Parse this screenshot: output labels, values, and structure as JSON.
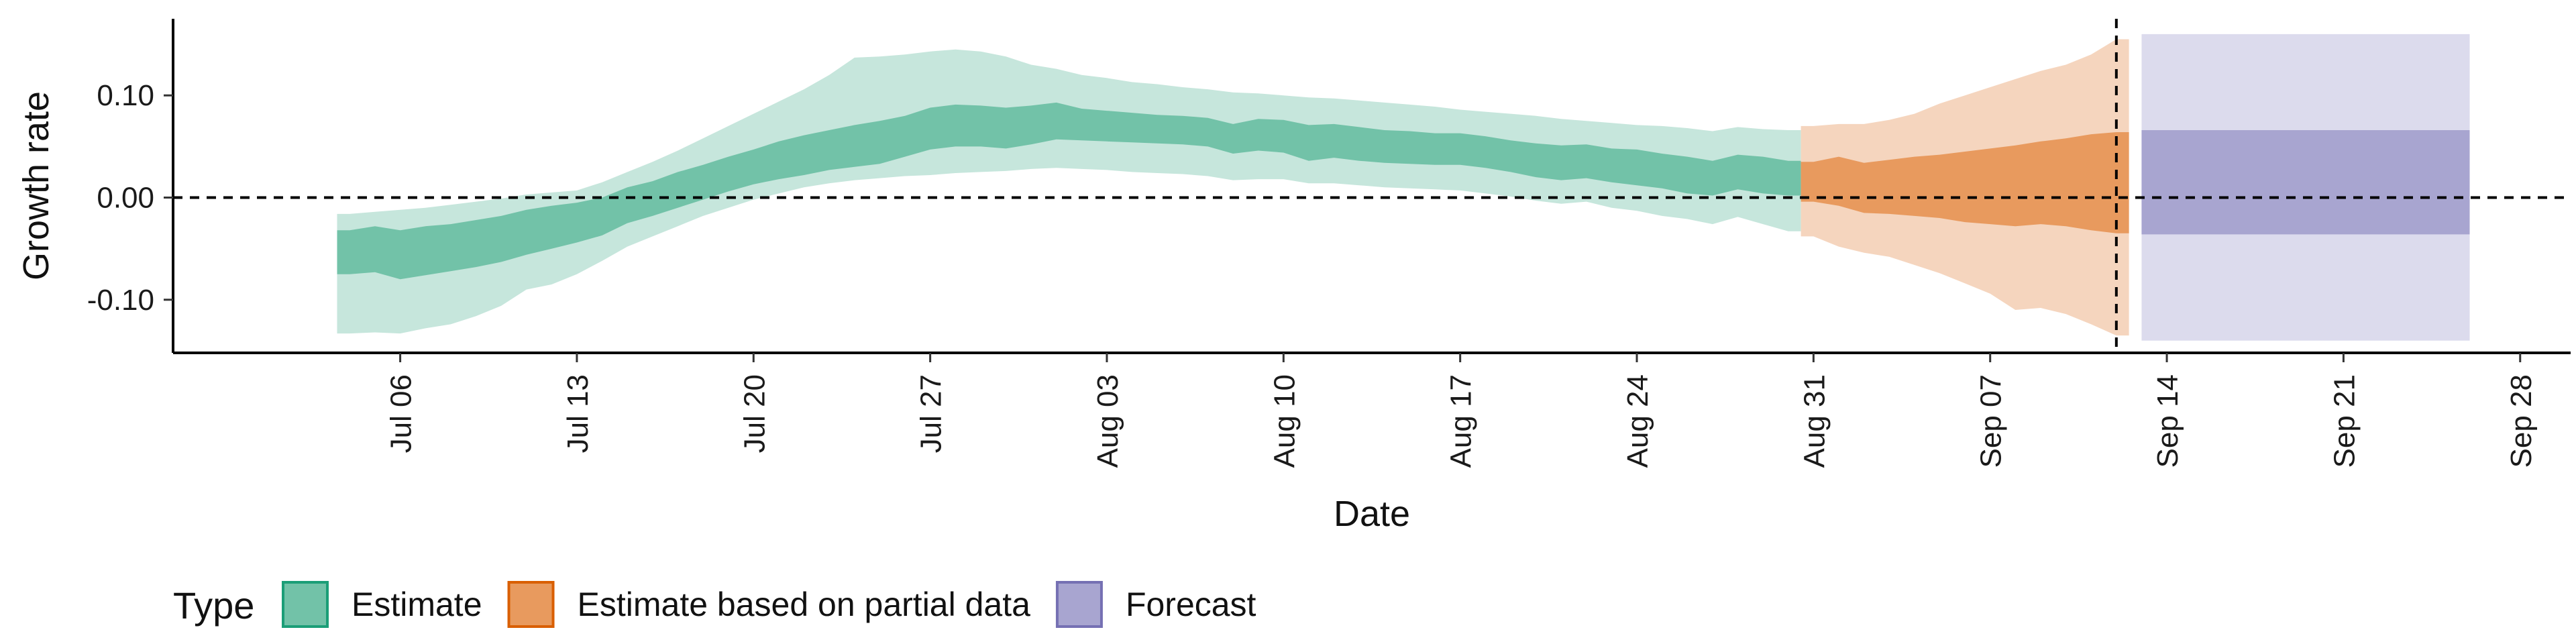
{
  "chart_data": {
    "type": "area",
    "xlabel": "Date",
    "ylabel": "Growth rate",
    "xlim": [
      "2020-06-27",
      "2020-09-30"
    ],
    "ylim": [
      -0.152,
      0.175
    ],
    "x_ticks": [
      "Jul 06",
      "Jul 13",
      "Jul 20",
      "Jul 27",
      "Aug 03",
      "Aug 10",
      "Aug 17",
      "Aug 24",
      "Aug 31",
      "Sep 07",
      "Sep 14",
      "Sep 21",
      "Sep 28"
    ],
    "x_tick_dates": [
      "2020-07-06",
      "2020-07-13",
      "2020-07-20",
      "2020-07-27",
      "2020-08-03",
      "2020-08-10",
      "2020-08-17",
      "2020-08-24",
      "2020-08-31",
      "2020-09-07",
      "2020-09-14",
      "2020-09-21",
      "2020-09-28"
    ],
    "y_ticks": [
      -0.1,
      0.0,
      0.1
    ],
    "y_tick_labels": [
      "-0.10",
      "0.00",
      "0.10"
    ],
    "reference_lines": {
      "horizontal_y": 0.0,
      "vertical_date": "2020-09-12"
    },
    "legend": {
      "title": "Type",
      "position": "bottom",
      "entries": [
        "Estimate",
        "Estimate based on partial data",
        "Forecast"
      ]
    },
    "series": [
      {
        "name": "Estimate",
        "color": "#1b9e77",
        "inner_fill": "#72c2a8",
        "outer_fill": "#c6e6dc",
        "dates": [
          "2020-07-04",
          "2020-07-05",
          "2020-07-06",
          "2020-07-07",
          "2020-07-08",
          "2020-07-09",
          "2020-07-10",
          "2020-07-11",
          "2020-07-12",
          "2020-07-13",
          "2020-07-14",
          "2020-07-15",
          "2020-07-16",
          "2020-07-17",
          "2020-07-18",
          "2020-07-19",
          "2020-07-20",
          "2020-07-21",
          "2020-07-22",
          "2020-07-23",
          "2020-07-24",
          "2020-07-25",
          "2020-07-26",
          "2020-07-27",
          "2020-07-28",
          "2020-07-29",
          "2020-07-30",
          "2020-07-31",
          "2020-08-01",
          "2020-08-02",
          "2020-08-03",
          "2020-08-04",
          "2020-08-05",
          "2020-08-06",
          "2020-08-07",
          "2020-08-08",
          "2020-08-09",
          "2020-08-10",
          "2020-08-11",
          "2020-08-12",
          "2020-08-13",
          "2020-08-14",
          "2020-08-15",
          "2020-08-16",
          "2020-08-17",
          "2020-08-18",
          "2020-08-19",
          "2020-08-20",
          "2020-08-21",
          "2020-08-22",
          "2020-08-23",
          "2020-08-24",
          "2020-08-25",
          "2020-08-26",
          "2020-08-27",
          "2020-08-28",
          "2020-08-29",
          "2020-08-30"
        ],
        "inner_upper": [
          -0.032,
          -0.028,
          -0.032,
          -0.028,
          -0.026,
          -0.022,
          -0.018,
          -0.012,
          -0.008,
          -0.005,
          0.0,
          0.01,
          0.016,
          0.025,
          0.032,
          0.04,
          0.047,
          0.055,
          0.061,
          0.066,
          0.071,
          0.075,
          0.08,
          0.088,
          0.091,
          0.09,
          0.088,
          0.09,
          0.093,
          0.087,
          0.085,
          0.083,
          0.081,
          0.08,
          0.078,
          0.072,
          0.077,
          0.076,
          0.071,
          0.072,
          0.069,
          0.066,
          0.065,
          0.063,
          0.063,
          0.06,
          0.056,
          0.053,
          0.051,
          0.052,
          0.048,
          0.047,
          0.043,
          0.04,
          0.036,
          0.042,
          0.04,
          0.036
        ],
        "inner_lower": [
          -0.075,
          -0.073,
          -0.08,
          -0.076,
          -0.072,
          -0.068,
          -0.063,
          -0.056,
          -0.05,
          -0.044,
          -0.037,
          -0.025,
          -0.018,
          -0.01,
          -0.002,
          0.006,
          0.013,
          0.018,
          0.022,
          0.027,
          0.03,
          0.033,
          0.04,
          0.047,
          0.05,
          0.05,
          0.048,
          0.052,
          0.057,
          0.056,
          0.055,
          0.054,
          0.053,
          0.052,
          0.05,
          0.043,
          0.046,
          0.044,
          0.036,
          0.039,
          0.036,
          0.034,
          0.033,
          0.032,
          0.032,
          0.029,
          0.025,
          0.02,
          0.017,
          0.019,
          0.015,
          0.012,
          0.009,
          0.004,
          0.002,
          0.008,
          0.004,
          0.002
        ],
        "outer_upper": [
          -0.016,
          -0.014,
          -0.012,
          -0.01,
          -0.007,
          -0.004,
          -0.001,
          0.003,
          0.005,
          0.007,
          0.015,
          0.025,
          0.035,
          0.046,
          0.058,
          0.07,
          0.082,
          0.094,
          0.106,
          0.12,
          0.137,
          0.138,
          0.14,
          0.143,
          0.145,
          0.143,
          0.138,
          0.13,
          0.126,
          0.12,
          0.117,
          0.113,
          0.111,
          0.108,
          0.106,
          0.103,
          0.102,
          0.1,
          0.098,
          0.097,
          0.095,
          0.093,
          0.091,
          0.089,
          0.086,
          0.084,
          0.082,
          0.08,
          0.077,
          0.075,
          0.073,
          0.071,
          0.07,
          0.068,
          0.065,
          0.069,
          0.067,
          0.066
        ],
        "outer_lower": [
          -0.133,
          -0.132,
          -0.133,
          -0.128,
          -0.124,
          -0.116,
          -0.106,
          -0.09,
          -0.085,
          -0.075,
          -0.062,
          -0.048,
          -0.038,
          -0.028,
          -0.018,
          -0.01,
          -0.002,
          0.004,
          0.01,
          0.014,
          0.017,
          0.019,
          0.021,
          0.022,
          0.024,
          0.025,
          0.026,
          0.028,
          0.029,
          0.028,
          0.027,
          0.025,
          0.024,
          0.023,
          0.021,
          0.017,
          0.018,
          0.018,
          0.014,
          0.014,
          0.012,
          0.01,
          0.009,
          0.008,
          0.007,
          0.004,
          0.001,
          -0.003,
          -0.006,
          -0.004,
          -0.01,
          -0.013,
          -0.018,
          -0.021,
          -0.026,
          -0.019,
          -0.026,
          -0.033
        ]
      },
      {
        "name": "Estimate based on partial data",
        "color": "#d95f02",
        "inner_fill": "#e89a5e",
        "outer_fill": "#f5d5be",
        "dates": [
          "2020-08-31",
          "2020-09-01",
          "2020-09-02",
          "2020-09-03",
          "2020-09-04",
          "2020-09-05",
          "2020-09-06",
          "2020-09-07",
          "2020-09-08",
          "2020-09-09",
          "2020-09-10",
          "2020-09-11",
          "2020-09-12"
        ],
        "inner_upper": [
          0.035,
          0.04,
          0.034,
          0.037,
          0.04,
          0.042,
          0.045,
          0.048,
          0.051,
          0.055,
          0.058,
          0.062,
          0.064
        ],
        "inner_lower": [
          -0.004,
          -0.008,
          -0.015,
          -0.016,
          -0.018,
          -0.02,
          -0.024,
          -0.026,
          -0.028,
          -0.026,
          -0.028,
          -0.032,
          -0.035
        ],
        "outer_upper": [
          0.07,
          0.072,
          0.072,
          0.076,
          0.082,
          0.092,
          0.1,
          0.108,
          0.116,
          0.124,
          0.13,
          0.14,
          0.155
        ],
        "outer_lower": [
          -0.038,
          -0.048,
          -0.054,
          -0.058,
          -0.066,
          -0.074,
          -0.084,
          -0.094,
          -0.11,
          -0.108,
          -0.114,
          -0.124,
          -0.135
        ]
      },
      {
        "name": "Forecast",
        "color": "#7570b3",
        "inner_fill": "#a8a5d0",
        "outer_fill": "#dcdbed",
        "dates": [
          "2020-09-13",
          "2020-09-26"
        ],
        "inner_upper": [
          0.066,
          0.066
        ],
        "inner_lower": [
          -0.036,
          -0.036
        ],
        "outer_upper": [
          0.16,
          0.16
        ],
        "outer_lower": [
          -0.14,
          -0.14
        ]
      }
    ]
  }
}
